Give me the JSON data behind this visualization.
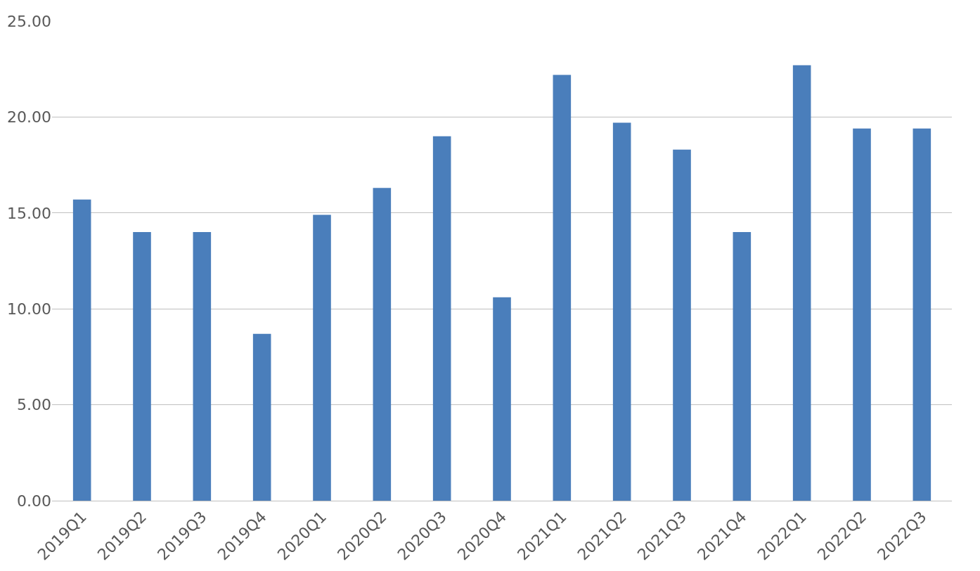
{
  "chart_data": {
    "type": "bar",
    "categories": [
      "2019Q1",
      "2019Q2",
      "2019Q3",
      "2019Q4",
      "2020Q1",
      "2020Q2",
      "2020Q3",
      "2020Q4",
      "2021Q1",
      "2021Q2",
      "2021Q3",
      "2021Q4",
      "2022Q1",
      "2022Q2",
      "2022Q3"
    ],
    "values": [
      15.7,
      14.0,
      14.0,
      8.7,
      14.9,
      16.3,
      19.0,
      10.6,
      22.2,
      19.7,
      18.3,
      14.0,
      22.7,
      19.4,
      19.4
    ],
    "color": "#4a7ebb",
    "ylim": [
      0,
      25
    ],
    "yticks": [
      {
        "value": 0,
        "label": "0.00"
      },
      {
        "value": 5,
        "label": "5.00"
      },
      {
        "value": 10,
        "label": "10.00"
      },
      {
        "value": 15,
        "label": "15.00"
      },
      {
        "value": 20,
        "label": "20.00"
      },
      {
        "value": 25,
        "label": "25.00"
      }
    ],
    "grid": "y"
  }
}
